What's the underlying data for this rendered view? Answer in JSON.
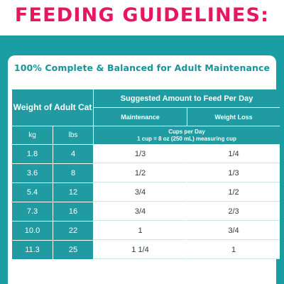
{
  "title": "FEEDING GUIDELINES:",
  "subtitle": "100% Complete & Balanced for Adult Maintenance",
  "table": {
    "weight_header": "Weight of Adult Cat",
    "suggested_header": "Suggested Amount to Feed Per Day",
    "maintenance_header": "Maintenance",
    "weight_loss_header": "Weight Loss",
    "kg_header": "kg",
    "lbs_header": "lbs",
    "cups_header_line1": "Cups per Day",
    "cups_header_line2": "1 cup = 8 oz (250 mL) measuring cup",
    "rows": [
      {
        "kg": "1.8",
        "lbs": "4",
        "maintenance": "1/3",
        "weight_loss": "1/4"
      },
      {
        "kg": "3.6",
        "lbs": "8",
        "maintenance": "1/2",
        "weight_loss": "1/3"
      },
      {
        "kg": "5.4",
        "lbs": "12",
        "maintenance": "3/4",
        "weight_loss": "1/2"
      },
      {
        "kg": "7.3",
        "lbs": "16",
        "maintenance": "3/4",
        "weight_loss": "2/3"
      },
      {
        "kg": "10.0",
        "lbs": "22",
        "maintenance": "1",
        "weight_loss": "3/4"
      },
      {
        "kg": "11.3",
        "lbs": "25",
        "maintenance": "1 1/4",
        "weight_loss": "1"
      }
    ]
  },
  "colors": {
    "title": "#e5175f",
    "teal": "#1b9ea3",
    "teal_cell": "#1f9ba1",
    "subtitle": "#15959b"
  }
}
